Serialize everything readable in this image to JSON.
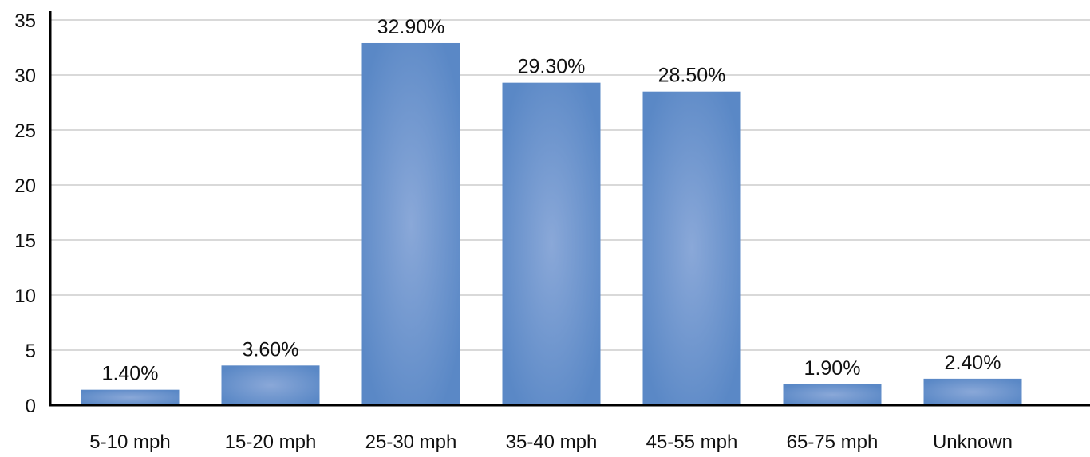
{
  "chart_data": {
    "type": "bar",
    "title": "",
    "xlabel": "",
    "ylabel": "",
    "categories": [
      "5-10 mph",
      "15-20 mph",
      "25-30 mph",
      "35-40 mph",
      "45-55 mph",
      "65-75 mph",
      "Unknown"
    ],
    "values": [
      1.4,
      3.6,
      32.9,
      29.3,
      28.5,
      1.9,
      2.4
    ],
    "data_labels": [
      "1.40%",
      "3.60%",
      "32.90%",
      "29.30%",
      "28.50%",
      "1.90%",
      "2.40%"
    ],
    "ylim": [
      0,
      35
    ],
    "yticks": [
      "0",
      "5",
      "10",
      "15",
      "20",
      "25",
      "30",
      "35"
    ],
    "grid": true,
    "legend": "none",
    "colors": {
      "bar": "#5a88c6",
      "bar_highlight": "#8aa8d8",
      "grid": "#d9d9d9",
      "axis": "#000000"
    }
  }
}
